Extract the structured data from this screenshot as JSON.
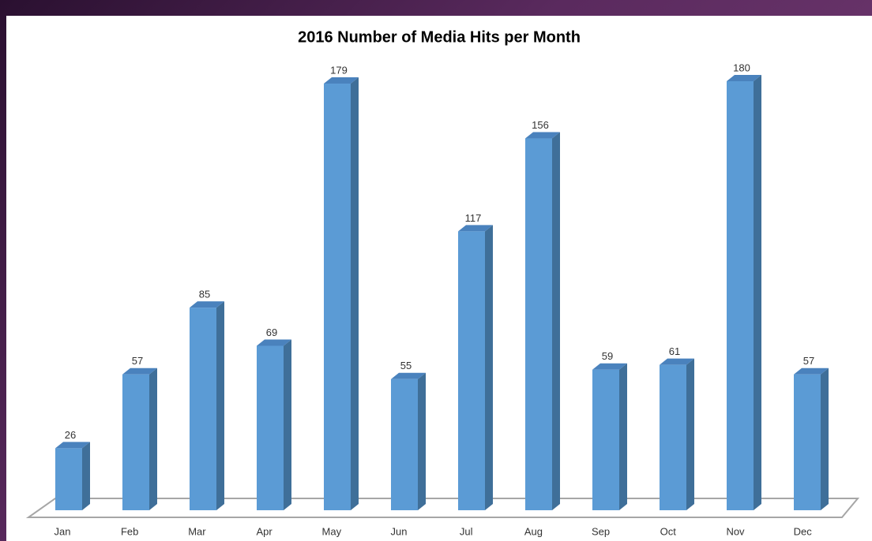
{
  "chart_data": {
    "type": "bar",
    "title": "2016 Number of Media Hits per Month",
    "categories": [
      "Jan",
      "Feb",
      "Mar",
      "Apr",
      "May",
      "Jun",
      "Jul",
      "Aug",
      "Sep",
      "Oct",
      "Nov",
      "Dec"
    ],
    "values": [
      26,
      57,
      85,
      69,
      179,
      55,
      117,
      156,
      59,
      61,
      180,
      57
    ],
    "color": "#5b9bd5"
  }
}
